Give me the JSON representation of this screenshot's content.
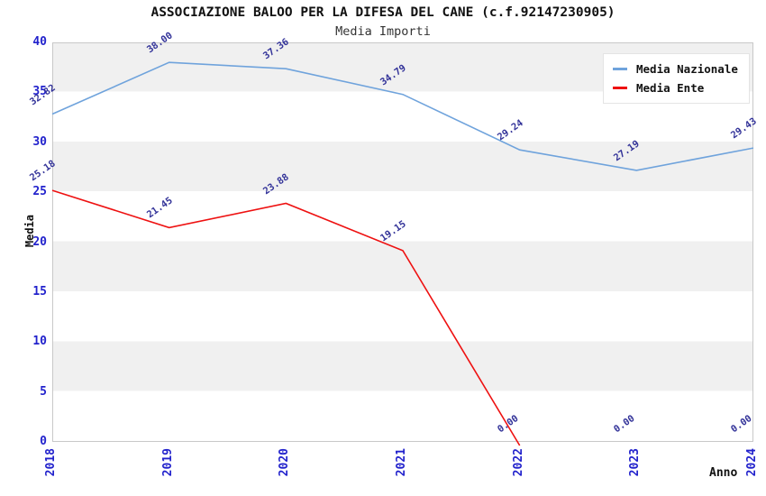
{
  "chart_data": {
    "type": "line",
    "title": "ASSOCIAZIONE BALOO PER LA DIFESA DEL CANE (c.f.92147230905)",
    "subtitle": "Media Importi",
    "xlabel": "Anno",
    "ylabel": "Media",
    "x": [
      "2018",
      "2019",
      "2020",
      "2021",
      "2022",
      "2023",
      "2024"
    ],
    "series": [
      {
        "name": "Media Nazionale",
        "color": "#6fa3dc",
        "values": [
          32.82,
          38.0,
          37.36,
          34.79,
          29.24,
          27.19,
          29.43
        ]
      },
      {
        "name": "Media Ente",
        "color": "#ee1111",
        "values": [
          25.18,
          21.45,
          23.88,
          19.15,
          0.0,
          0.0,
          0.0
        ]
      }
    ],
    "ylim": [
      0,
      40
    ],
    "yticks": [
      0,
      5,
      10,
      15,
      20,
      25,
      30,
      35,
      40
    ],
    "legend_position": "top-right",
    "grid": "horizontal-bands",
    "band_colors": [
      "#ffffff",
      "#f0f0f0"
    ],
    "axis_tick_color": "#2222cc",
    "point_label_color": "#333399",
    "plot_border_color": "#c8c8c8"
  }
}
